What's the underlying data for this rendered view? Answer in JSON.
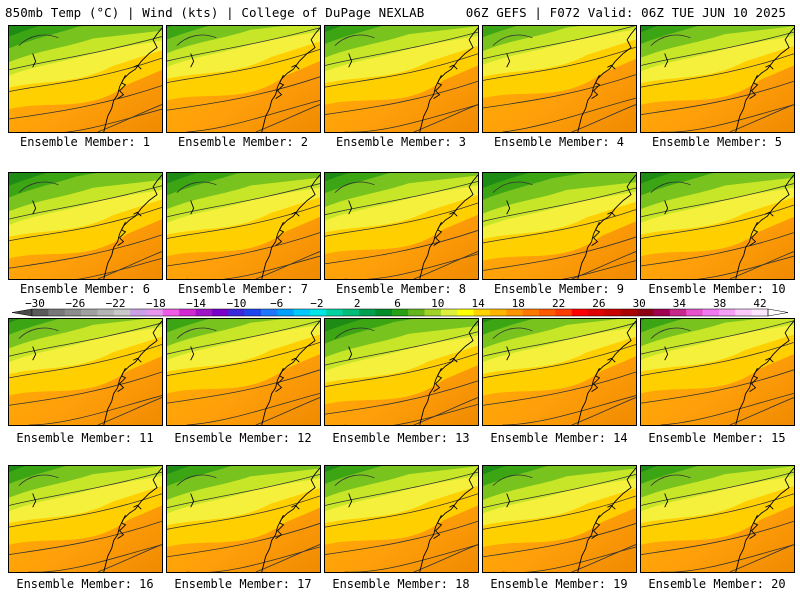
{
  "header": {
    "left": "850mb Temp (°C) | Wind (kts) | College of DuPage NEXLAB",
    "right": "06Z GEFS | F072 Valid: 06Z TUE JUN 10 2025"
  },
  "panels": [
    {
      "label": "Ensemble Member: 1"
    },
    {
      "label": "Ensemble Member: 2"
    },
    {
      "label": "Ensemble Member: 3"
    },
    {
      "label": "Ensemble Member: 4"
    },
    {
      "label": "Ensemble Member: 5"
    },
    {
      "label": "Ensemble Member: 6"
    },
    {
      "label": "Ensemble Member: 7"
    },
    {
      "label": "Ensemble Member: 8"
    },
    {
      "label": "Ensemble Member: 9"
    },
    {
      "label": "Ensemble Member: 10"
    },
    {
      "label": "Ensemble Member: 11"
    },
    {
      "label": "Ensemble Member: 12"
    },
    {
      "label": "Ensemble Member: 13"
    },
    {
      "label": "Ensemble Member: 14"
    },
    {
      "label": "Ensemble Member: 15"
    },
    {
      "label": "Ensemble Member: 16"
    },
    {
      "label": "Ensemble Member: 17"
    },
    {
      "label": "Ensemble Member: 18"
    },
    {
      "label": "Ensemble Member: 19"
    },
    {
      "label": "Ensemble Member: 20"
    }
  ],
  "colorbar": {
    "ticks": [
      "−30",
      "−26",
      "−22",
      "−18",
      "−14",
      "−10",
      "−6",
      "−2",
      "2",
      "6",
      "10",
      "14",
      "18",
      "22",
      "26",
      "30",
      "34",
      "38",
      "42"
    ],
    "colors": [
      "#5a5a5a",
      "#787878",
      "#8c8c8c",
      "#a0a0a0",
      "#b4b4b4",
      "#c8c8c8",
      "#c8a0e6",
      "#e696f0",
      "#f05ae6",
      "#d228d2",
      "#a014c8",
      "#7800c8",
      "#3c28dc",
      "#1e46f0",
      "#1e78ff",
      "#00a0ff",
      "#00c8ff",
      "#00e6e6",
      "#00d2a0",
      "#00be78",
      "#00a050",
      "#008c28",
      "#28a014",
      "#64b41e",
      "#a0d228",
      "#dcf03c",
      "#ffff00",
      "#ffd200",
      "#ffb400",
      "#ff9600",
      "#ff7800",
      "#ff5a00",
      "#ff3c00",
      "#ff0000",
      "#e10000",
      "#c80000",
      "#aa0000",
      "#8c0014",
      "#a00050",
      "#c8288c",
      "#e650c8",
      "#f078f0",
      "#f5a0f5",
      "#fac8fa",
      "#fde6fd"
    ]
  }
}
